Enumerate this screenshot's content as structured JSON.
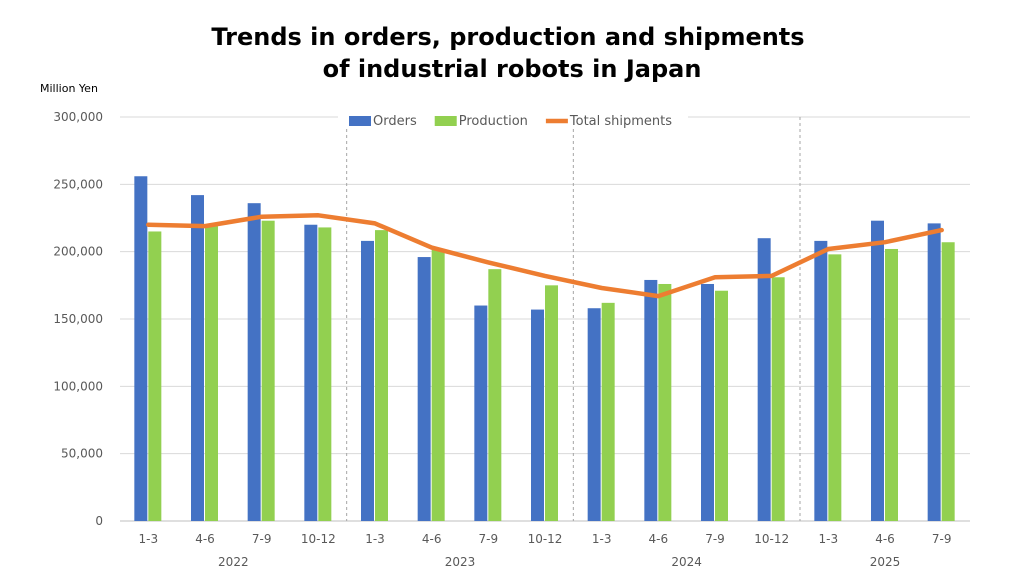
{
  "chart_data": {
    "type": "bar",
    "title_line1": "Trends in orders, production and shipments",
    "title_line2": "of industrial robots in Japan",
    "ylabel": "Million Yen",
    "ylim": [
      0,
      300000
    ],
    "yticks": [
      "0",
      "50,000",
      "100,000",
      "150,000",
      "200,000",
      "250,000",
      "300,000"
    ],
    "ytick_values": [
      0,
      50000,
      100000,
      150000,
      200000,
      250000,
      300000
    ],
    "categories": [
      "1-3",
      "4-6",
      "7-9",
      "10-12",
      "1-3",
      "4-6",
      "7-9",
      "10-12",
      "1-3",
      "4-6",
      "7-9",
      "10-12",
      "1-3",
      "4-6",
      "7-9"
    ],
    "years": [
      {
        "label": "2022",
        "start_index": 0
      },
      {
        "label": "2023",
        "start_index": 4
      },
      {
        "label": "2024",
        "start_index": 8
      },
      {
        "label": "2025",
        "start_index": 12
      }
    ],
    "series": [
      {
        "name": "Orders",
        "kind": "bar",
        "color": "#4472C4",
        "values": [
          256000,
          242000,
          236000,
          220000,
          208000,
          196000,
          160000,
          157000,
          158000,
          179000,
          176000,
          210000,
          208000,
          223000,
          221000
        ]
      },
      {
        "name": "Production",
        "kind": "bar",
        "color": "#92D050",
        "values": [
          215000,
          219000,
          223000,
          218000,
          216000,
          202000,
          187000,
          175000,
          162000,
          176000,
          171000,
          181000,
          198000,
          202000,
          207000
        ]
      },
      {
        "name": "Total shipments",
        "kind": "line",
        "color": "#ED7D31",
        "values": [
          220000,
          219000,
          226000,
          227000,
          221000,
          203000,
          192000,
          182000,
          173000,
          167000,
          181000,
          182000,
          202000,
          207000,
          216000
        ]
      }
    ],
    "legend_position": "top",
    "grid": true
  }
}
